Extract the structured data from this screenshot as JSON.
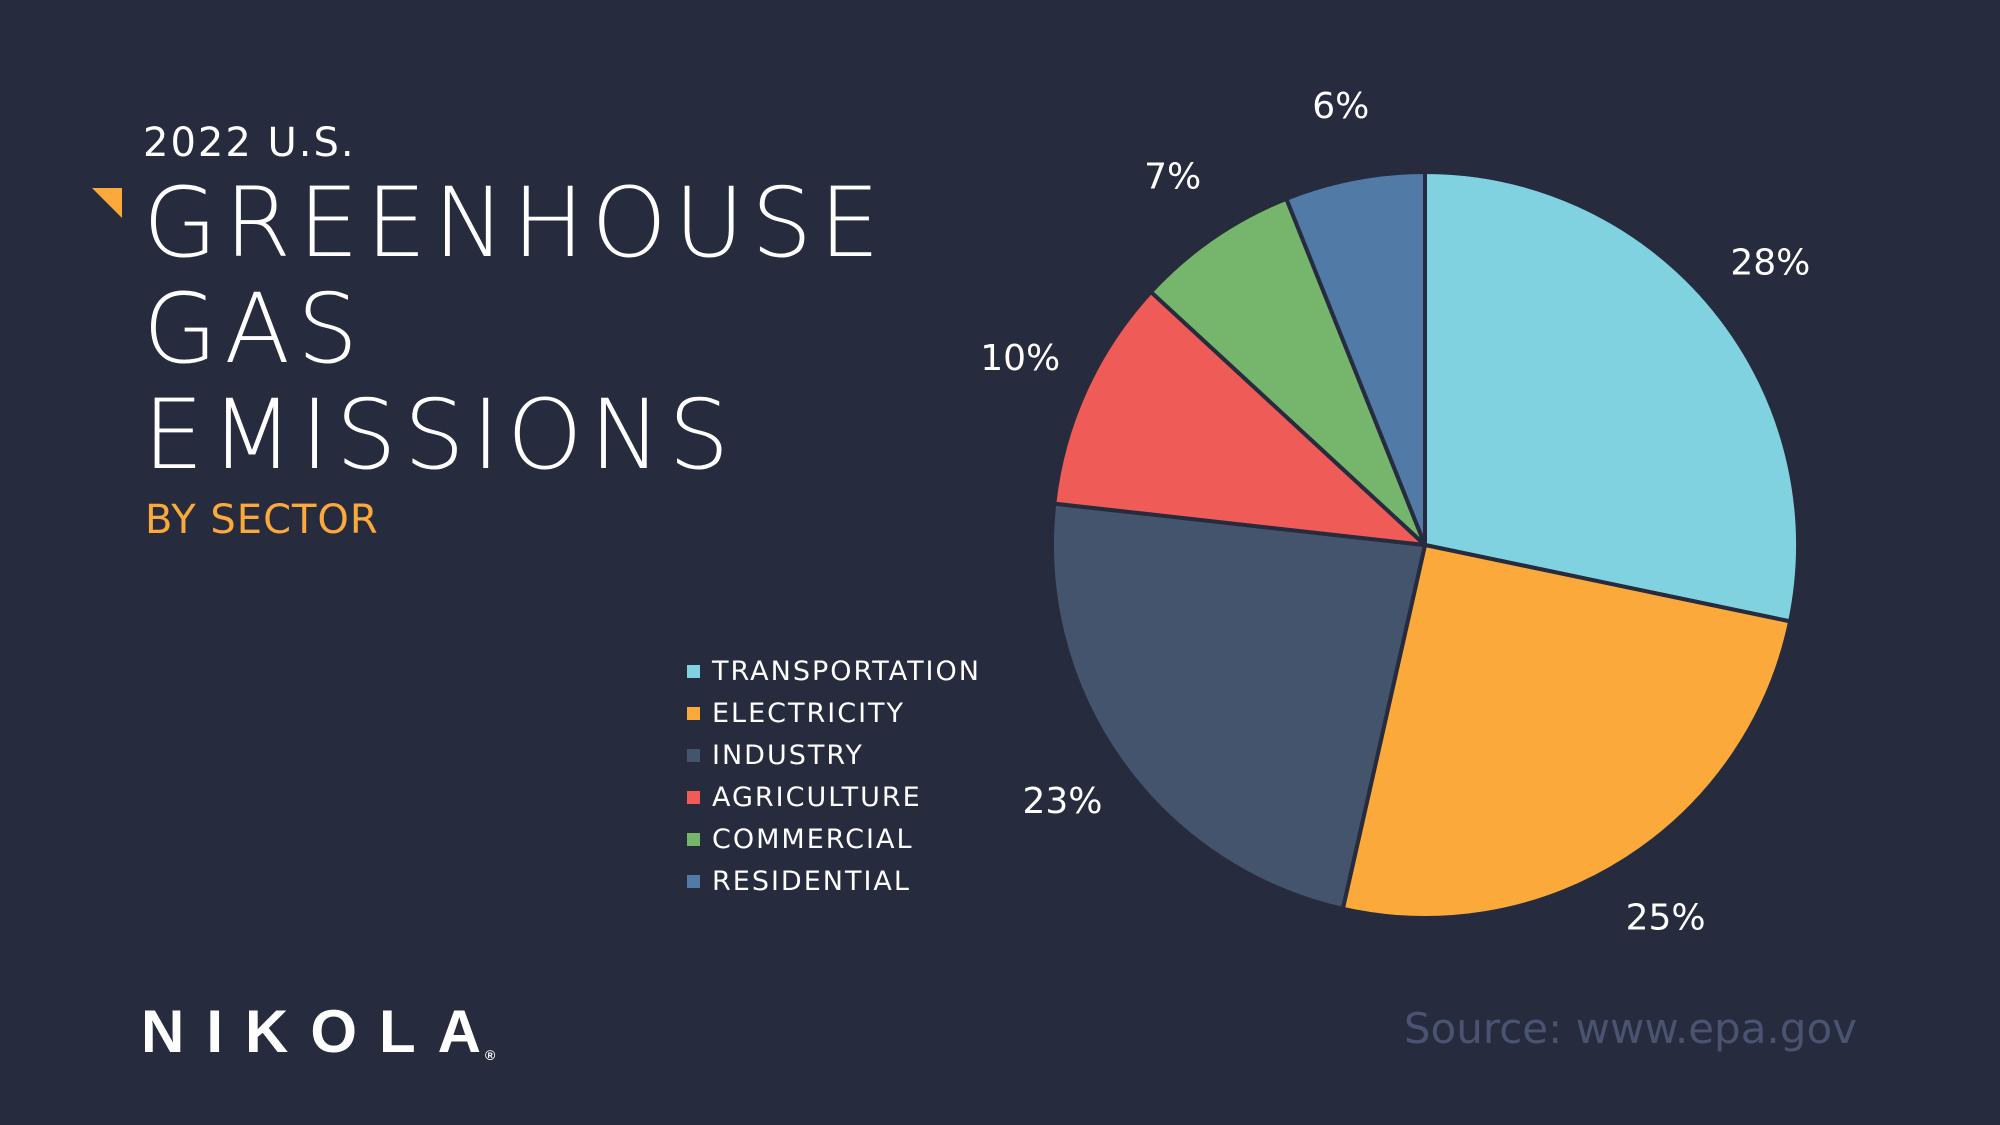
{
  "header": {
    "subtitle_top": "2022 U.S.",
    "title_lines": [
      "GREENHOUSE",
      "GAS",
      "EMISSIONS"
    ],
    "subtitle_bottom": "BY SECTOR"
  },
  "colors": {
    "background": "#262b3e",
    "accent": "#fba93a",
    "transportation": "#80d2e0",
    "electricity": "#fba93a",
    "industry": "#45546d",
    "agriculture": "#ef5b57",
    "commercial": "#76b66c",
    "residential": "#527aa6"
  },
  "chart_data": {
    "type": "pie",
    "slices": [
      {
        "label": "TRANSPORTATION",
        "value": 28,
        "value_label": "28%",
        "color": "#80d2e0"
      },
      {
        "label": "ELECTRICITY",
        "value": 25,
        "value_label": "25%",
        "color": "#fba93a"
      },
      {
        "label": "INDUSTRY",
        "value": 23,
        "value_label": "23%",
        "color": "#45546d"
      },
      {
        "label": "AGRICULTURE",
        "value": 10,
        "value_label": "10%",
        "color": "#ef5b57"
      },
      {
        "label": "COMMERCIAL",
        "value": 7,
        "value_label": "7%",
        "color": "#76b66c"
      },
      {
        "label": "RESIDENTIAL",
        "value": 6,
        "value_label": "6%",
        "color": "#527aa6"
      }
    ],
    "start_angle": "12 o'clock",
    "direction": "clockwise",
    "legend_position": "left"
  },
  "footer": {
    "logo_text": "NIKOLA",
    "logo_mark": "®",
    "source": "Source: www.epa.gov"
  }
}
